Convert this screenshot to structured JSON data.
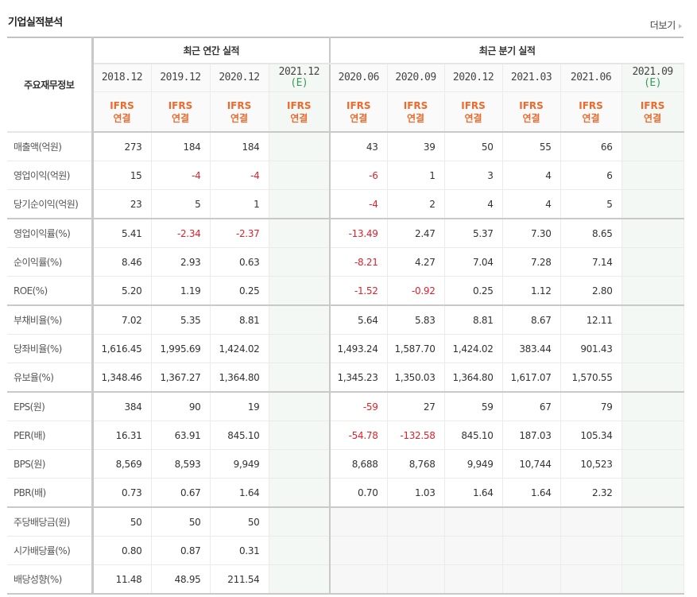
{
  "section_title": "기업실적분석",
  "more_link": "더보기",
  "table": {
    "label_header": "주요재무정보",
    "groups": [
      {
        "label": "최근 연간 실적",
        "span": 4
      },
      {
        "label": "최근 분기 실적",
        "span": 6
      }
    ],
    "periods": [
      {
        "period": "2018.12",
        "estimate": "",
        "standard": "IFRS",
        "basis": "연결"
      },
      {
        "period": "2019.12",
        "estimate": "",
        "standard": "IFRS",
        "basis": "연결"
      },
      {
        "period": "2020.12",
        "estimate": "",
        "standard": "IFRS",
        "basis": "연결"
      },
      {
        "period": "2021.12",
        "estimate": "(E)",
        "standard": "IFRS",
        "basis": "연결"
      },
      {
        "period": "2020.06",
        "estimate": "",
        "standard": "IFRS",
        "basis": "연결"
      },
      {
        "period": "2020.09",
        "estimate": "",
        "standard": "IFRS",
        "basis": "연결"
      },
      {
        "period": "2020.12",
        "estimate": "",
        "standard": "IFRS",
        "basis": "연결"
      },
      {
        "period": "2021.03",
        "estimate": "",
        "standard": "IFRS",
        "basis": "연결"
      },
      {
        "period": "2021.06",
        "estimate": "",
        "standard": "IFRS",
        "basis": "연결"
      },
      {
        "period": "2021.09",
        "estimate": "(E)",
        "standard": "IFRS",
        "basis": "연결"
      }
    ],
    "rows": [
      {
        "label": "매출액(억원)",
        "values": [
          "273",
          "184",
          "184",
          "",
          "43",
          "39",
          "50",
          "55",
          "66",
          ""
        ]
      },
      {
        "label": "영업이익(억원)",
        "values": [
          "15",
          "-4",
          "-4",
          "",
          "-6",
          "1",
          "3",
          "4",
          "6",
          ""
        ]
      },
      {
        "label": "당기순이익(억원)",
        "values": [
          "23",
          "5",
          "1",
          "",
          "-4",
          "2",
          "4",
          "4",
          "5",
          ""
        ]
      },
      {
        "label": "영업이익률(%)",
        "values": [
          "5.41",
          "-2.34",
          "-2.37",
          "",
          "-13.49",
          "2.47",
          "5.37",
          "7.30",
          "8.65",
          ""
        ]
      },
      {
        "label": "순이익률(%)",
        "values": [
          "8.46",
          "2.93",
          "0.63",
          "",
          "-8.21",
          "4.27",
          "7.04",
          "7.28",
          "7.14",
          ""
        ]
      },
      {
        "label": "ROE(%)",
        "values": [
          "5.20",
          "1.19",
          "0.25",
          "",
          "-1.52",
          "-0.92",
          "0.25",
          "1.12",
          "2.80",
          ""
        ]
      },
      {
        "label": "부채비율(%)",
        "values": [
          "7.02",
          "5.35",
          "8.81",
          "",
          "5.64",
          "5.83",
          "8.81",
          "8.67",
          "12.11",
          ""
        ]
      },
      {
        "label": "당좌비율(%)",
        "values": [
          "1,616.45",
          "1,995.69",
          "1,424.02",
          "",
          "1,493.24",
          "1,587.70",
          "1,424.02",
          "383.44",
          "901.43",
          ""
        ]
      },
      {
        "label": "유보율(%)",
        "values": [
          "1,348.46",
          "1,367.27",
          "1,364.80",
          "",
          "1,345.23",
          "1,350.03",
          "1,364.80",
          "1,617.07",
          "1,570.55",
          ""
        ]
      },
      {
        "label": "EPS(원)",
        "values": [
          "384",
          "90",
          "19",
          "",
          "-59",
          "27",
          "59",
          "67",
          "79",
          ""
        ]
      },
      {
        "label": "PER(배)",
        "values": [
          "16.31",
          "63.91",
          "845.10",
          "",
          "-54.78",
          "-132.58",
          "845.10",
          "187.03",
          "105.34",
          ""
        ]
      },
      {
        "label": "BPS(원)",
        "values": [
          "8,569",
          "8,593",
          "9,949",
          "",
          "8,688",
          "8,768",
          "9,949",
          "10,744",
          "10,523",
          ""
        ]
      },
      {
        "label": "PBR(배)",
        "values": [
          "0.73",
          "0.67",
          "1.64",
          "",
          "0.70",
          "1.03",
          "1.64",
          "1.64",
          "2.32",
          ""
        ]
      },
      {
        "label": "주당배당금(원)",
        "values": [
          "50",
          "50",
          "50",
          "",
          "",
          "",
          "",
          "",
          "",
          ""
        ]
      },
      {
        "label": "시가배당률(%)",
        "values": [
          "0.80",
          "0.87",
          "0.31",
          "",
          "",
          "",
          "",
          "",
          "",
          ""
        ]
      },
      {
        "label": "배당성향(%)",
        "values": [
          "11.48",
          "48.95",
          "211.54",
          "",
          "",
          "",
          "",
          "",
          "",
          ""
        ]
      }
    ]
  },
  "colors": {
    "negative": "#e0212b",
    "ifrs_label": "#ec6a2d",
    "estimate_mark": "#3a9a58",
    "estimate_column_bg": "#f3f8f4"
  }
}
